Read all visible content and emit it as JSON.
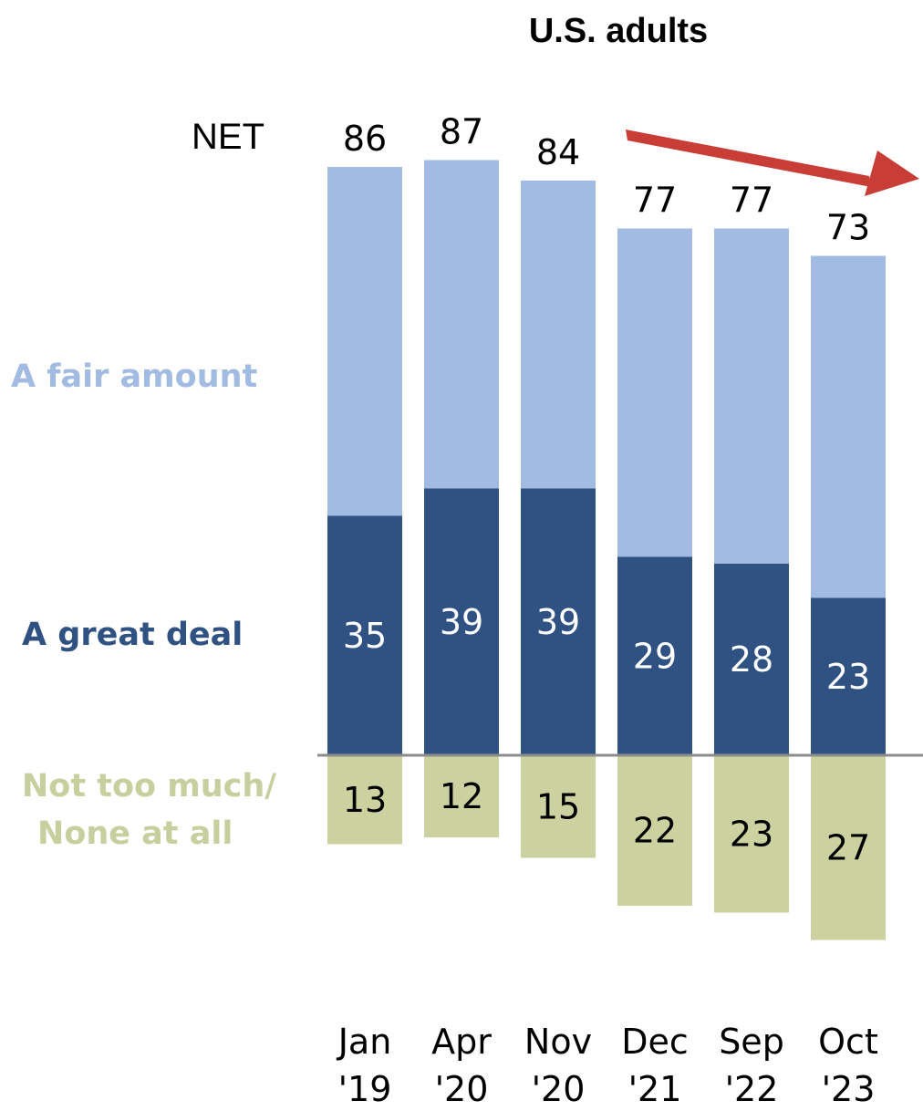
{
  "chart_data": {
    "type": "bar",
    "stacked": true,
    "title": "U.S. adults",
    "net_label": "NET",
    "categories": [
      [
        "Jan",
        "'19"
      ],
      [
        "Apr",
        "'20"
      ],
      [
        "Nov",
        "'20"
      ],
      [
        "Dec",
        "'21"
      ],
      [
        "Sep",
        "'22"
      ],
      [
        "Oct",
        "'23"
      ]
    ],
    "net": [
      86,
      87,
      84,
      77,
      77,
      73
    ],
    "series": [
      {
        "name": "A great deal",
        "values": [
          35,
          39,
          39,
          29,
          28,
          23
        ],
        "color": "#2f5283",
        "label_color": "#ffffff",
        "direction": "up"
      },
      {
        "name": "A fair amount",
        "values": [
          51,
          48,
          45,
          48,
          49,
          50
        ],
        "color": "#a1bbe2",
        "direction": "up",
        "show_values": false
      },
      {
        "name_lines": [
          "Not too much/",
          "None at all"
        ],
        "values": [
          13,
          12,
          15,
          22,
          23,
          27
        ],
        "color": "#cbd29f",
        "label_color": "#000000",
        "direction": "down"
      }
    ],
    "label_colors": {
      "A great deal": "#2f5283",
      "A fair amount": "#a1bbe2",
      "Not too much/None at all": "#c8cf9e"
    },
    "baseline_color": "#8c8c8c",
    "trend_arrow_color": "#c83d35"
  }
}
